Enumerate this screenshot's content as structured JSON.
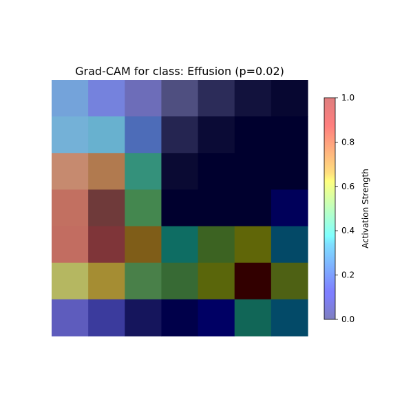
{
  "chart_data": {
    "type": "heatmap",
    "title": "Grad-CAM for class: Effusion (p=0.02)",
    "rows": 7,
    "cols": 7,
    "cell_colors": [
      [
        "#74a3da",
        "#7582dd",
        "#6d6db9",
        "#4f4f80",
        "#2c2c59",
        "#12123d",
        "#070731"
      ],
      [
        "#74b1d7",
        "#68b1cf",
        "#4d6cb8",
        "#252551",
        "#0b0b36",
        "#00002e",
        "#00002e"
      ],
      [
        "#c68a6f",
        "#b17a4f",
        "#34917b",
        "#0a0a33",
        "#00002e",
        "#00002e",
        "#00002e"
      ],
      [
        "#c27061",
        "#6f3a3a",
        "#44874f",
        "#00002e",
        "#00002e",
        "#00002e",
        "#00005a"
      ],
      [
        "#c26d61",
        "#7f3539",
        "#7f5d18",
        "#0e6d63",
        "#3c6322",
        "#606608",
        "#034967"
      ],
      [
        "#b5b761",
        "#a58d33",
        "#498049",
        "#376a34",
        "#5a660b",
        "#320000",
        "#4e6114"
      ],
      [
        "#5e5cbd",
        "#3b3b9d",
        "#15155c",
        "#00004a",
        "#000064",
        "#116657",
        "#034a68"
      ]
    ],
    "colorbar": {
      "label": "Activation Strength",
      "range": [
        0.0,
        1.0
      ],
      "ticks": [
        "0.0",
        "0.2",
        "0.4",
        "0.6",
        "0.8",
        "1.0"
      ],
      "colormap": "jet",
      "alpha": 0.5
    },
    "axes_visible": false
  }
}
